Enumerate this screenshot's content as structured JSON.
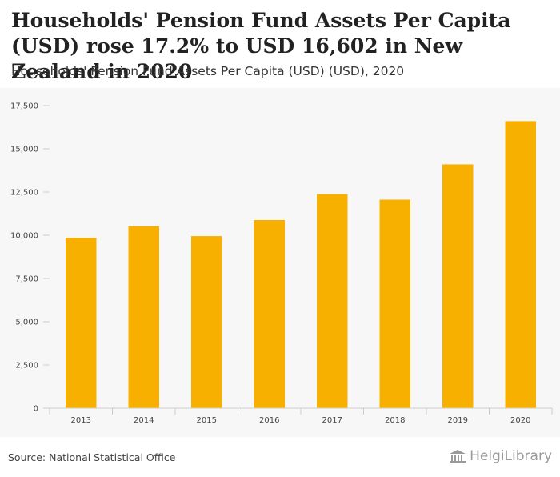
{
  "title": "Households' Pension Fund Assets Per Capita (USD) rose 17.2% to USD 16,602 in New Zealand in 2020",
  "subtitle": "Households' Pension Fund Assets Per Capita (USD) (USD), 2020",
  "source": "Source: National Statistical Office",
  "logo_text": "HelgiLibrary",
  "colors": {
    "bar": "#F7B000",
    "plot_bg": "#F7F7F7",
    "axis": "#CCCCCC"
  },
  "chart_data": {
    "type": "bar",
    "title": "Households' Pension Fund Assets Per Capita (USD) rose 17.2% to USD 16,602 in New Zealand in 2020",
    "xlabel": "",
    "ylabel": "",
    "categories": [
      "2013",
      "2014",
      "2015",
      "2016",
      "2017",
      "2018",
      "2019",
      "2020"
    ],
    "values": [
      9850,
      10520,
      9950,
      10880,
      12380,
      12060,
      14100,
      16602
    ],
    "ylim": [
      0,
      17500
    ],
    "yticks": [
      0,
      2500,
      5000,
      7500,
      10000,
      12500,
      15000,
      17500
    ],
    "ytick_labels": [
      "0",
      "2,500",
      "5,000",
      "7,500",
      "10,000",
      "12,500",
      "15,000",
      "17,500"
    ],
    "grid": false,
    "legend": "none"
  }
}
